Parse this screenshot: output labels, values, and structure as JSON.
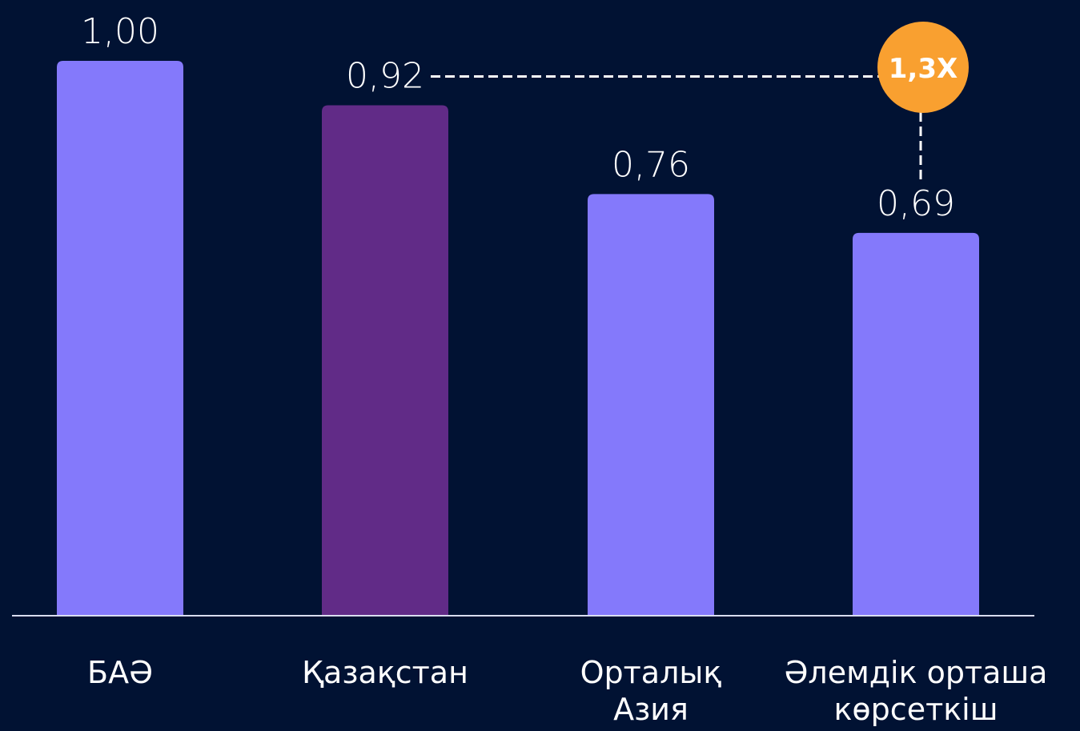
{
  "chart_data": {
    "type": "bar",
    "categories": [
      "БАӘ",
      "Қазақстан",
      "Орталық\nАзия",
      "Әлемдік орташа\nкөрсеткіш"
    ],
    "values": [
      1.0,
      0.92,
      0.76,
      0.69
    ],
    "value_labels": [
      "1,00",
      "0,92",
      "0,76",
      "0,69"
    ],
    "colors": [
      "#8479fb",
      "#612b87",
      "#8479fb",
      "#8479fb"
    ],
    "ylim": [
      0,
      1
    ],
    "annotation": "1,3X"
  }
}
